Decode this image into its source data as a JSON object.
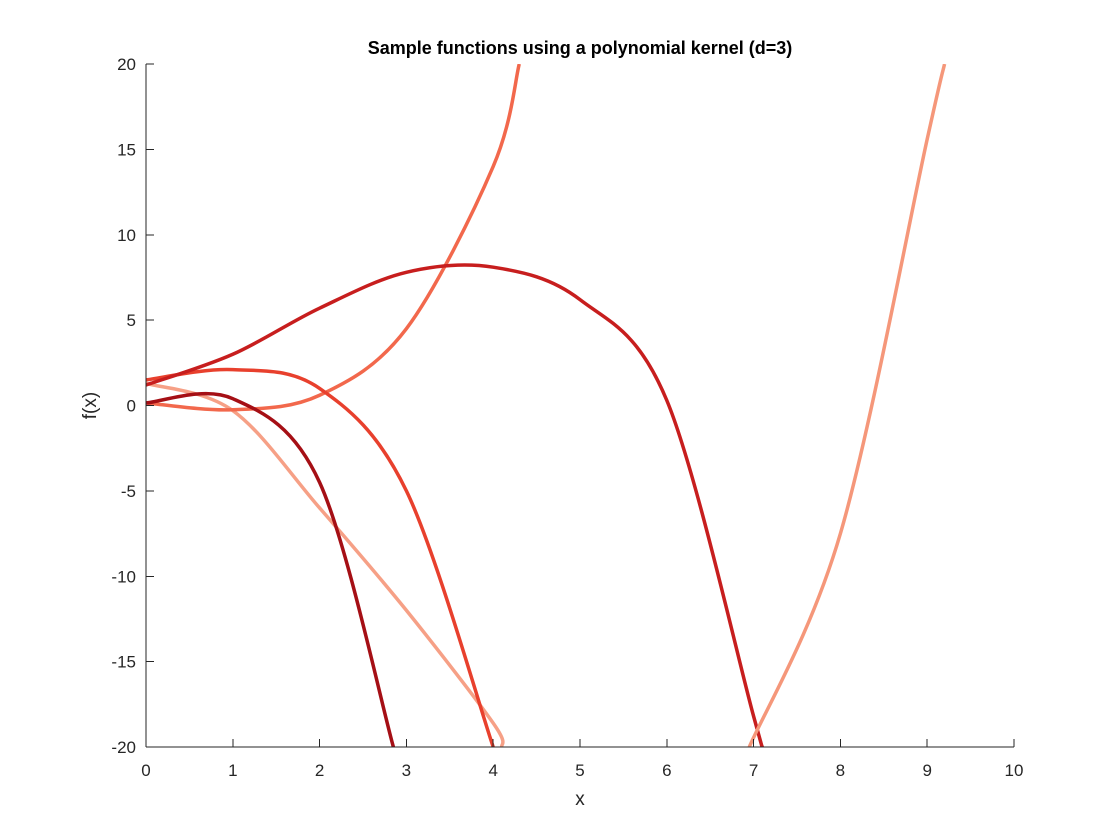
{
  "chart_data": {
    "type": "line",
    "title": "Sample functions using a polynomial kernel (d=3)",
    "xlabel": "x",
    "ylabel": "f(x)",
    "xlim": [
      0,
      10
    ],
    "ylim": [
      -20,
      20
    ],
    "xticks": [
      0,
      1,
      2,
      3,
      4,
      5,
      6,
      7,
      8,
      9,
      10
    ],
    "yticks": [
      -20,
      -15,
      -10,
      -5,
      0,
      5,
      10,
      15,
      20
    ],
    "xtick_labels": [
      "0",
      "1",
      "2",
      "3",
      "4",
      "5",
      "6",
      "7",
      "8",
      "9",
      "10"
    ],
    "ytick_labels": [
      "-20",
      "-15",
      "-10",
      "-5",
      "0",
      "5",
      "10",
      "15",
      "20"
    ],
    "grid": false,
    "legend": "none",
    "series": [
      {
        "color": "#f6a086",
        "points": [
          [
            0,
            1.3
          ],
          [
            1,
            -0.3
          ],
          [
            2,
            -6
          ],
          [
            3,
            -12
          ],
          [
            4,
            -18.6
          ],
          [
            4.1,
            -20
          ]
        ]
      },
      {
        "color": "#f2684c",
        "points": [
          [
            0,
            0.15
          ],
          [
            1,
            -0.25
          ],
          [
            2,
            0.6
          ],
          [
            3,
            4.5
          ],
          [
            4,
            14
          ],
          [
            4.3,
            20
          ]
        ]
      },
      {
        "color": "#e8402d",
        "points": [
          [
            0,
            1.5
          ],
          [
            1,
            2.1
          ],
          [
            2,
            1
          ],
          [
            3,
            -5
          ],
          [
            4,
            -20
          ]
        ]
      },
      {
        "color": "#c71e1e",
        "points": [
          [
            0,
            1.2
          ],
          [
            1,
            3
          ],
          [
            2,
            5.7
          ],
          [
            3,
            7.8
          ],
          [
            4,
            8.1
          ],
          [
            5,
            6.2
          ],
          [
            6,
            0.3
          ],
          [
            7,
            -18.2
          ],
          [
            7.1,
            -20
          ]
        ]
      },
      {
        "color": "#f5977a",
        "points": [
          [
            6.95,
            -20
          ],
          [
            8,
            -7.5
          ],
          [
            9,
            15.6
          ],
          [
            9.2,
            20
          ]
        ]
      },
      {
        "color": "#a50f15",
        "points": [
          [
            0,
            0.15
          ],
          [
            1,
            0.4
          ],
          [
            2,
            -4.5
          ],
          [
            2.85,
            -20
          ]
        ]
      }
    ]
  }
}
